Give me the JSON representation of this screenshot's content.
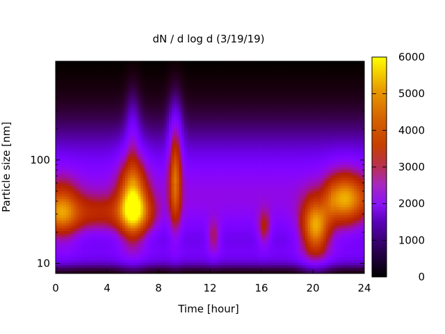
{
  "chart_data": {
    "type": "heatmap",
    "title": "dN / d log d (3/19/19)",
    "xlabel": "Time [hour]",
    "ylabel": "Particle size [nm]",
    "xlim": [
      0,
      24
    ],
    "ylim": [
      8,
      900
    ],
    "yscale": "log",
    "x_ticks": [
      0,
      4,
      8,
      12,
      16,
      20,
      24
    ],
    "x_tick_labels": [
      "0",
      "4",
      "8",
      "12",
      "16",
      "20",
      "24"
    ],
    "y_ticks": [
      10,
      100
    ],
    "y_tick_labels": [
      "10",
      "100"
    ],
    "colorbar": {
      "range": [
        0,
        6000
      ],
      "ticks": [
        0,
        1000,
        2000,
        3000,
        4000,
        5000,
        6000
      ],
      "tick_labels": [
        "0",
        "1000",
        "2000",
        "3000",
        "4000",
        "5000",
        "6000"
      ],
      "colormap": "gnuplot (black-purple-red-yellow)"
    },
    "features": [
      {
        "time": 0.5,
        "size": 32,
        "value": 3600
      },
      {
        "time": 6,
        "size": 40,
        "value": 5400
      },
      {
        "time": 9.3,
        "size": 60,
        "value": 4300
      },
      {
        "time": 12.3,
        "size": 18,
        "value": 3000
      },
      {
        "time": 16.2,
        "size": 22,
        "value": 3200
      },
      {
        "time": 20.2,
        "size": 22,
        "value": 5400
      },
      {
        "time": 22.5,
        "size": 42,
        "value": 3800
      }
    ]
  }
}
